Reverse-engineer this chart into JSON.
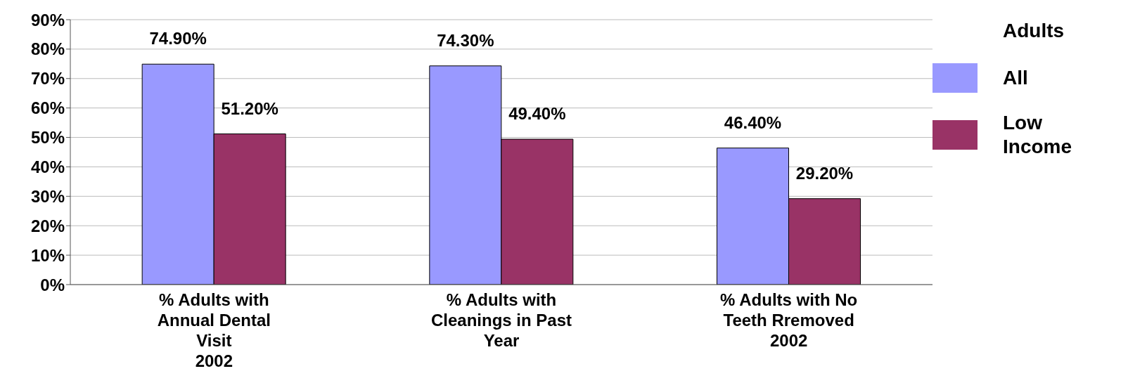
{
  "chart_data": {
    "type": "bar",
    "categories": [
      "% Adults with Annual Dental Visit\n2002",
      "% Adults with Cleanings in Past Year",
      "% Adults with No Teeth Rremoved\n2002"
    ],
    "series": [
      {
        "name": "All",
        "color": "#9999ff",
        "values": [
          74.9,
          74.3,
          46.4
        ],
        "value_labels": [
          "74.90%",
          "74.30%",
          "46.40%"
        ]
      },
      {
        "name": "Low Income",
        "color": "#993366",
        "values": [
          51.2,
          49.4,
          29.2
        ],
        "value_labels": [
          "51.20%",
          "49.40%",
          "29.20%"
        ]
      }
    ],
    "ylim": [
      0,
      90
    ],
    "yticks": [
      {
        "value": 0,
        "label": "0%"
      },
      {
        "value": 10,
        "label": "10%"
      },
      {
        "value": 20,
        "label": "20%"
      },
      {
        "value": 30,
        "label": "30%"
      },
      {
        "value": 40,
        "label": "40%"
      },
      {
        "value": 50,
        "label": "50%"
      },
      {
        "value": 60,
        "label": "60%"
      },
      {
        "value": 70,
        "label": "70%"
      },
      {
        "value": 80,
        "label": "80%"
      },
      {
        "value": 90,
        "label": "90%"
      }
    ],
    "grid": "y",
    "legend": "right",
    "legend_title": "Adults"
  }
}
